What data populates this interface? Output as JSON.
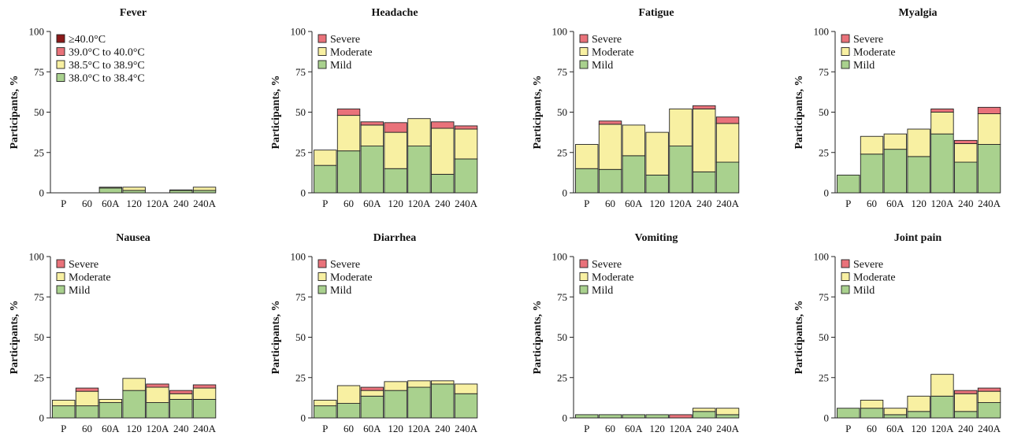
{
  "colors": {
    "mild": "#a9d18e",
    "moderate": "#f8f0a2",
    "severe": "#e9727a",
    "fever_38_0": "#a9d18e",
    "fever_38_5": "#f8f0a2",
    "fever_39_0": "#e9727a",
    "fever_40_0": "#8b1a1a",
    "outline": "#222222"
  },
  "chart_data": [
    {
      "type": "bar",
      "stacked": true,
      "title": "Fever",
      "ylabel": "Participants, %",
      "ylim": [
        0,
        100
      ],
      "yticks": [
        "0",
        "25",
        "50",
        "75",
        "100"
      ],
      "categories": [
        "P",
        "60",
        "60A",
        "120",
        "120A",
        "240",
        "240A"
      ],
      "legend": "top-left",
      "series": [
        {
          "name": "38.0°C to 38.4°C",
          "color_key": "fever_38_0",
          "values": [
            0,
            0,
            3,
            1.5,
            0,
            1.5,
            1.5
          ]
        },
        {
          "name": "38.5°C to 38.9°C",
          "color_key": "fever_38_5",
          "values": [
            0,
            0,
            0.5,
            2,
            0,
            0.3,
            2
          ]
        },
        {
          "name": "39.0°C to 40.0°C",
          "color_key": "fever_39_0",
          "values": [
            0,
            0,
            0,
            0,
            0,
            0,
            0
          ]
        },
        {
          "name": "≥40.0°C",
          "color_key": "fever_40_0",
          "values": [
            0,
            0,
            0,
            0,
            0,
            0,
            0
          ]
        }
      ]
    },
    {
      "type": "bar",
      "stacked": true,
      "title": "Headache",
      "ylabel": "Participants, %",
      "ylim": [
        0,
        100
      ],
      "yticks": [
        "0",
        "25",
        "50",
        "75",
        "100"
      ],
      "categories": [
        "P",
        "60",
        "60A",
        "120",
        "120A",
        "240",
        "240A"
      ],
      "legend": "top-left",
      "series": [
        {
          "name": "Mild",
          "color_key": "mild",
          "values": [
            17,
            26,
            29,
            15,
            29,
            11.5,
            21
          ]
        },
        {
          "name": "Moderate",
          "color_key": "moderate",
          "values": [
            9.5,
            22,
            13,
            22.5,
            17,
            28.5,
            18.5
          ]
        },
        {
          "name": "Severe",
          "color_key": "severe",
          "values": [
            0,
            4,
            2,
            6,
            0,
            4,
            2
          ]
        }
      ]
    },
    {
      "type": "bar",
      "stacked": true,
      "title": "Fatigue",
      "ylabel": "Participants, %",
      "ylim": [
        0,
        100
      ],
      "yticks": [
        "0",
        "25",
        "50",
        "75",
        "100"
      ],
      "categories": [
        "P",
        "60",
        "60A",
        "120",
        "120A",
        "240",
        "240A"
      ],
      "legend": "top-left",
      "series": [
        {
          "name": "Mild",
          "color_key": "mild",
          "values": [
            15,
            14.5,
            23,
            11,
            29,
            13,
            19
          ]
        },
        {
          "name": "Moderate",
          "color_key": "moderate",
          "values": [
            15,
            28,
            19,
            26.5,
            23,
            39,
            24
          ]
        },
        {
          "name": "Severe",
          "color_key": "severe",
          "values": [
            0,
            2,
            0,
            0,
            0,
            2,
            4
          ]
        }
      ]
    },
    {
      "type": "bar",
      "stacked": true,
      "title": "Myalgia",
      "ylabel": "Participants, %",
      "ylim": [
        0,
        100
      ],
      "yticks": [
        "0",
        "25",
        "50",
        "75",
        "100"
      ],
      "categories": [
        "P",
        "60",
        "60A",
        "120",
        "120A",
        "240",
        "240A"
      ],
      "legend": "top-left",
      "series": [
        {
          "name": "Mild",
          "color_key": "mild",
          "values": [
            11,
            24,
            27,
            22.5,
            36.5,
            19,
            30
          ]
        },
        {
          "name": "Moderate",
          "color_key": "moderate",
          "values": [
            0,
            11,
            9.5,
            17,
            13.5,
            11.5,
            19
          ]
        },
        {
          "name": "Severe",
          "color_key": "severe",
          "values": [
            0,
            0,
            0,
            0,
            2,
            2,
            4
          ]
        }
      ]
    },
    {
      "type": "bar",
      "stacked": true,
      "title": "Nausea",
      "ylabel": "Participants, %",
      "ylim": [
        0,
        100
      ],
      "yticks": [
        "0",
        "25",
        "50",
        "75",
        "100"
      ],
      "categories": [
        "P",
        "60",
        "60A",
        "120",
        "120A",
        "240",
        "240A"
      ],
      "legend": "top-left",
      "series": [
        {
          "name": "Mild",
          "color_key": "mild",
          "values": [
            7.5,
            7.5,
            9.5,
            17,
            9.5,
            11.5,
            11.5
          ]
        },
        {
          "name": "Moderate",
          "color_key": "moderate",
          "values": [
            3.5,
            9,
            2,
            7.5,
            9.5,
            3.5,
            7
          ]
        },
        {
          "name": "Severe",
          "color_key": "severe",
          "values": [
            0,
            2,
            0,
            0,
            2,
            2,
            2
          ]
        }
      ]
    },
    {
      "type": "bar",
      "stacked": true,
      "title": "Diarrhea",
      "ylabel": "Participants, %",
      "ylim": [
        0,
        100
      ],
      "yticks": [
        "0",
        "25",
        "50",
        "75",
        "100"
      ],
      "categories": [
        "P",
        "60",
        "60A",
        "120",
        "120A",
        "240",
        "240A"
      ],
      "legend": "top-left",
      "series": [
        {
          "name": "Mild",
          "color_key": "mild",
          "values": [
            7.5,
            9,
            13.5,
            17,
            19,
            21,
            15
          ]
        },
        {
          "name": "Moderate",
          "color_key": "moderate",
          "values": [
            3.5,
            11,
            3.5,
            5.5,
            4,
            2,
            6
          ]
        },
        {
          "name": "Severe",
          "color_key": "severe",
          "values": [
            0,
            0,
            2,
            0,
            0,
            0,
            0
          ]
        }
      ]
    },
    {
      "type": "bar",
      "stacked": true,
      "title": "Vomiting",
      "ylabel": "Participants, %",
      "ylim": [
        0,
        100
      ],
      "yticks": [
        "0",
        "25",
        "50",
        "75",
        "100"
      ],
      "categories": [
        "P",
        "60",
        "60A",
        "120",
        "120A",
        "240",
        "240A"
      ],
      "legend": "top-left",
      "series": [
        {
          "name": "Mild",
          "color_key": "mild",
          "values": [
            2,
            2,
            2,
            2,
            0,
            4,
            2
          ]
        },
        {
          "name": "Moderate",
          "color_key": "moderate",
          "values": [
            0,
            0,
            0,
            0,
            0,
            2,
            4
          ]
        },
        {
          "name": "Severe",
          "color_key": "severe",
          "values": [
            0,
            0,
            0,
            0,
            2,
            0,
            0
          ]
        }
      ]
    },
    {
      "type": "bar",
      "stacked": true,
      "title": "Joint pain",
      "ylabel": "Participants, %",
      "ylim": [
        0,
        100
      ],
      "yticks": [
        "0",
        "25",
        "50",
        "75",
        "100"
      ],
      "categories": [
        "P",
        "60",
        "60A",
        "120",
        "120A",
        "240",
        "240A"
      ],
      "legend": "top-left",
      "series": [
        {
          "name": "Mild",
          "color_key": "mild",
          "values": [
            6,
            6,
            2,
            4,
            13.5,
            4,
            9.5
          ]
        },
        {
          "name": "Moderate",
          "color_key": "moderate",
          "values": [
            0,
            5,
            4,
            9.5,
            13.5,
            11,
            7
          ]
        },
        {
          "name": "Severe",
          "color_key": "severe",
          "values": [
            0,
            0,
            0,
            0,
            0,
            2,
            2
          ]
        }
      ]
    }
  ]
}
